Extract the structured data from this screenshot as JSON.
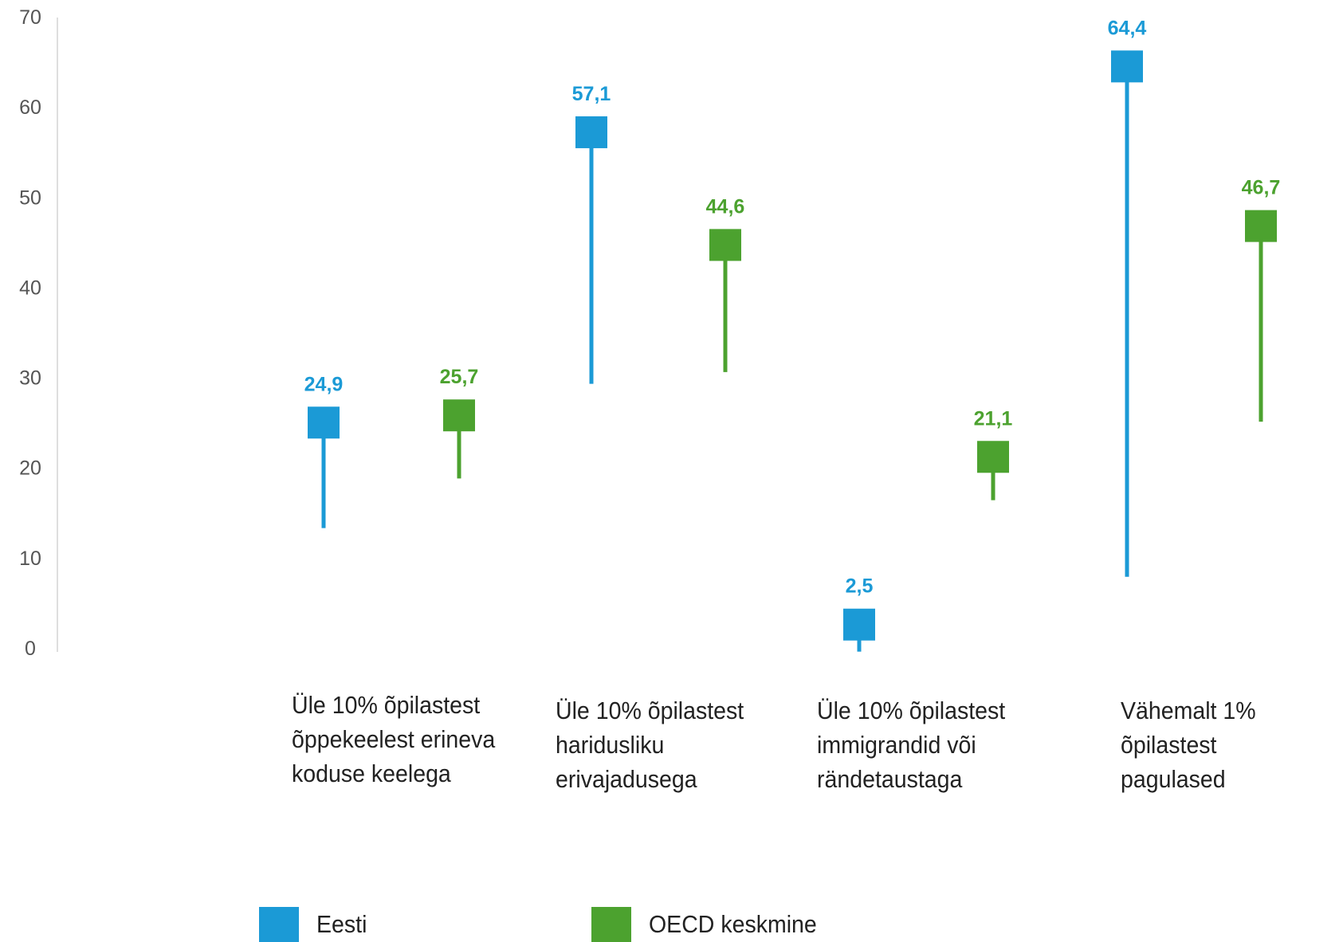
{
  "chart_data": {
    "type": "error-bar-marker",
    "ylim": [
      0,
      70
    ],
    "yticks": [
      "0",
      "10",
      "20",
      "30",
      "40",
      "50",
      "60",
      "70"
    ],
    "ytick_values": [
      0,
      10,
      20,
      30,
      40,
      50,
      60,
      70
    ],
    "categories": [
      "Üle 10% õpilastest\nõppekeelest erineva\nkoduse keelega",
      "Üle 10% õpilastest\nharidusliku\nerivajadusega",
      "Üle 10% õpilastest\nimmigrandid või\nrändetaustaga",
      "Vähemalt 1%\nõpilastest pagulased"
    ],
    "series": [
      {
        "name": "Eesti",
        "color": "#1b9ad6",
        "values": [
          24.9,
          57.1,
          2.5,
          64.4
        ],
        "labels": [
          "24,9",
          "57,1",
          "2,5",
          "64,4"
        ],
        "whisker_low": [
          13.2,
          29.2,
          -0.5,
          7.8
        ]
      },
      {
        "name": "OECD keskmine",
        "color": "#4ca22f",
        "values": [
          25.7,
          44.6,
          21.1,
          46.7
        ],
        "labels": [
          "25,7",
          "44,6",
          "21,1",
          "46,7"
        ],
        "whisker_low": [
          18.7,
          30.5,
          16.3,
          25.0
        ]
      }
    ],
    "legend": [
      "Eesti",
      "OECD keskmine"
    ],
    "legend_position": "bottom-left",
    "grid": false
  }
}
